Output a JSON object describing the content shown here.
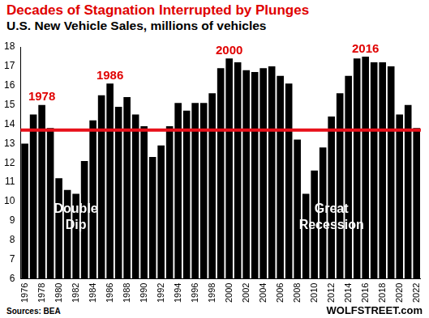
{
  "chart_data": {
    "type": "bar",
    "title": "Decades of Stagnation Interrupted by Plunges",
    "subtitle": "U.S. New Vehicle Sales, millions of vehicles",
    "source": "Sources: BEA",
    "credit": "WOLFSTREET.com",
    "categories": [
      "1976",
      null,
      "1978",
      null,
      "1980",
      null,
      "1982",
      null,
      "1984",
      null,
      "1986",
      null,
      "1988",
      null,
      "1990",
      null,
      "1992",
      null,
      "1994",
      null,
      "1996",
      null,
      "1998",
      null,
      "2000",
      null,
      "2002",
      null,
      "2004",
      null,
      "2006",
      null,
      "2008",
      null,
      "2010",
      null,
      "2012",
      null,
      "2014",
      null,
      "2016",
      null,
      "2018",
      null,
      "2020",
      null,
      "2022"
    ],
    "values": [
      13.0,
      14.5,
      15.0,
      13.8,
      11.2,
      10.6,
      10.4,
      12.1,
      14.2,
      15.5,
      16.1,
      14.9,
      15.4,
      14.5,
      13.9,
      12.3,
      12.9,
      13.9,
      15.1,
      14.7,
      15.1,
      15.1,
      15.6,
      16.9,
      17.4,
      17.2,
      16.8,
      16.7,
      16.9,
      17.0,
      16.5,
      16.1,
      13.2,
      10.4,
      11.6,
      12.8,
      14.4,
      15.6,
      16.5,
      17.4,
      17.5,
      17.2,
      17.2,
      17.0,
      14.5,
      15.0,
      13.8
    ],
    "color": "#000000",
    "ylim": [
      6,
      18
    ],
    "yticks": [
      6,
      7,
      8,
      9,
      10,
      11,
      12,
      13,
      14,
      15,
      16,
      17,
      18
    ],
    "grid": false,
    "reference_line": {
      "value": 13.7,
      "color": "#e8101a"
    },
    "annotations": [
      {
        "text": "1978",
        "at": "1978",
        "color": "#e00000"
      },
      {
        "text": "1986",
        "at": "1986",
        "color": "#e00000"
      },
      {
        "text": "2000",
        "at": "2000",
        "color": "#e00000"
      },
      {
        "text": "2016",
        "at": "2016",
        "color": "#e00000"
      },
      {
        "lines": [
          "Double",
          "Dip"
        ],
        "x": "1982",
        "y": 9.6,
        "color": "#ffffff"
      },
      {
        "lines": [
          "Great",
          "Recession"
        ],
        "x": "2012",
        "y": 9.6,
        "color": "#ffffff"
      }
    ]
  }
}
